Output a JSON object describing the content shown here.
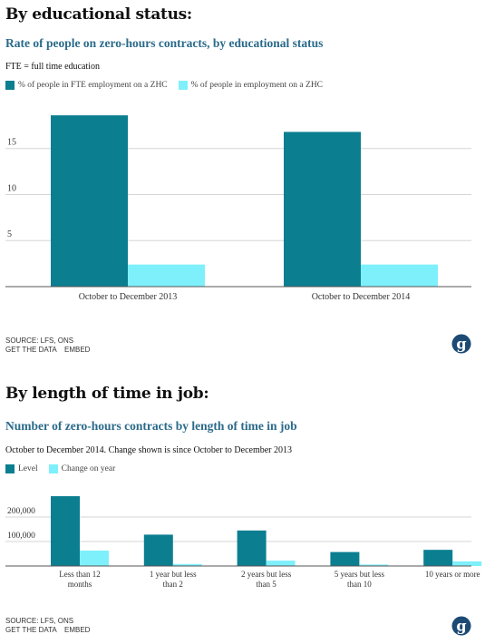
{
  "sections": [
    {
      "heading": "By educational status:",
      "title": "Rate of people on zero-hours contracts, by educational status",
      "subtitle": "FTE = full time education",
      "source": "SOURCE: LFS, ONS",
      "get_data_label": "GET THE DATA",
      "embed_label": "EMBED"
    },
    {
      "heading": "By length of time in job:",
      "title": "Number of zero-hours contracts by length of time in job",
      "subtitle": "October to December 2014. Change shown is since October to December 2013",
      "source": "SOURCE: LFS, ONS",
      "get_data_label": "GET THE DATA",
      "embed_label": "EMBED"
    }
  ],
  "colors": {
    "dark": "#0b7e90",
    "light": "#7ef0fb",
    "grid": "#d6d6d6",
    "title": "#2a6a8a"
  },
  "chart_data": [
    {
      "type": "bar",
      "categories": [
        "October to December 2013",
        "October to December 2014"
      ],
      "series": [
        {
          "name": "% of people in FTE employment on a ZHC",
          "values": [
            18.6,
            16.8
          ]
        },
        {
          "name": "% of people in employment on a ZHC",
          "values": [
            2.4,
            2.4
          ]
        }
      ],
      "yticks": [
        5,
        10,
        15
      ],
      "ylim": [
        0,
        19.5
      ],
      "grid": true,
      "legend": "top-left"
    },
    {
      "type": "bar",
      "categories": [
        "Less than 12 months",
        "1 year but less than 2",
        "2 years but less than 5",
        "5 years but less than 10",
        "10 years or more"
      ],
      "series": [
        {
          "name": "Level",
          "values": [
            285000,
            128000,
            145000,
            57000,
            66000
          ]
        },
        {
          "name": "Change on year",
          "values": [
            63000,
            8000,
            22000,
            6000,
            19000
          ]
        }
      ],
      "yticks": [
        100000,
        200000
      ],
      "ytick_labels": [
        "100,000",
        "200,000"
      ],
      "ylim": [
        0,
        300000
      ],
      "grid": true,
      "legend": "top-left"
    }
  ]
}
